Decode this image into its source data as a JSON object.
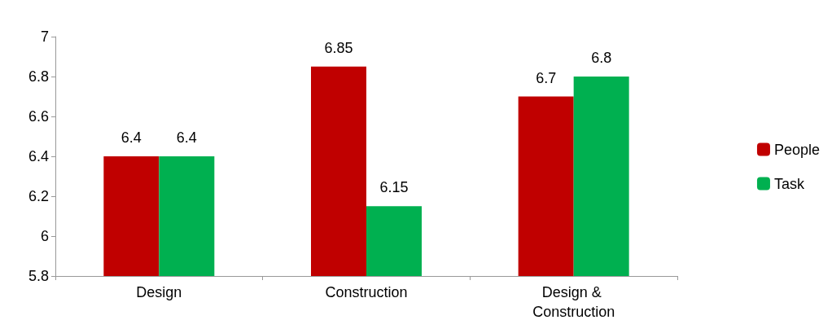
{
  "chart_data": {
    "type": "bar",
    "categories": [
      "Design",
      "Construction",
      "Design & Construction"
    ],
    "series": [
      {
        "name": "People",
        "color": "#c00000",
        "values": [
          6.4,
          6.85,
          6.7
        ]
      },
      {
        "name": "Task",
        "color": "#00b050",
        "values": [
          6.4,
          6.15,
          6.8
        ]
      }
    ],
    "ylim": [
      5.8,
      7
    ],
    "yticks": [
      5.8,
      6,
      6.2,
      6.4,
      6.6,
      6.8,
      7
    ],
    "grid": false,
    "legend": "right",
    "data_labels": true
  }
}
